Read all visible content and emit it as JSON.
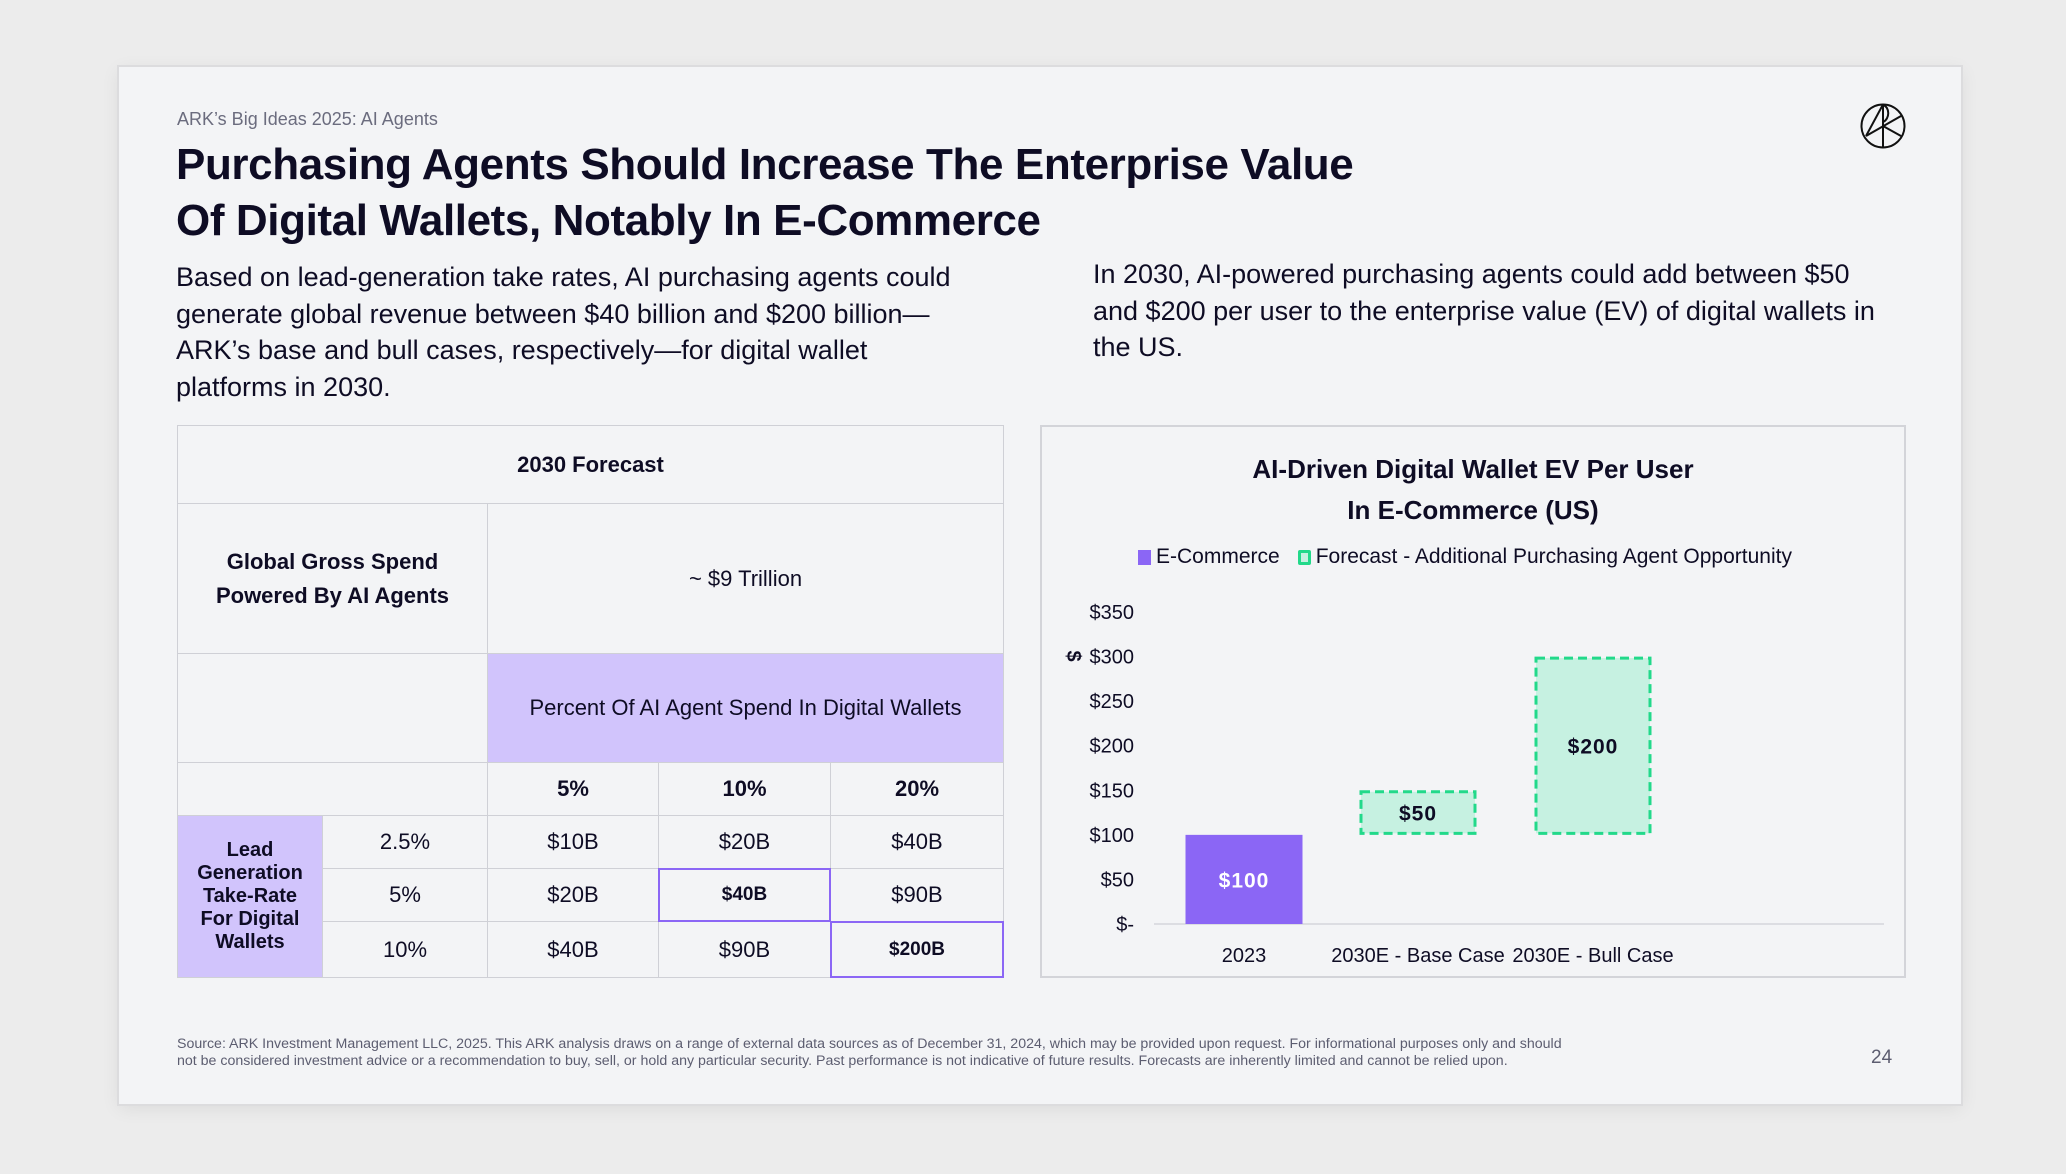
{
  "header": {
    "kicker": "ARK’s Big Ideas 2025: AI Agents",
    "title_line1": "Purchasing Agents Should Increase The Enterprise Value",
    "title_line2": "Of Digital Wallets, Notably In E-Commerce",
    "logo_icon": "ark-logo-icon"
  },
  "intro": {
    "left": "Based on lead-generation take rates, AI purchasing agents could generate global revenue between $40 billion and $200 billion—ARK’s base and bull cases, respectively—for digital wallet platforms in 2030.",
    "right": "In 2030, AI-powered purchasing agents could add between $50 and $200 per user to the enterprise value (EV) of digital wallets in the US."
  },
  "table": {
    "title": "2030 Forecast",
    "gross_spend_label": "Global Gross Spend Powered By AI Agents",
    "gross_spend_value": "~ $9 Trillion",
    "percent_header": "Percent Of AI Agent Spend In Digital Wallets",
    "column_headers": [
      "5%",
      "10%",
      "20%"
    ],
    "row_group_label": "Lead Generation Take-Rate For Digital Wallets",
    "rows": [
      {
        "rate": "2.5%",
        "values": [
          "$10B",
          "$20B",
          "$40B"
        ]
      },
      {
        "rate": "5%",
        "values": [
          "$20B",
          "$40B",
          "$90B"
        ]
      },
      {
        "rate": "10%",
        "values": [
          "$40B",
          "$90B",
          "$200B"
        ]
      }
    ],
    "highlighted_cells": [
      {
        "row": 1,
        "col": 1,
        "label": "base case"
      },
      {
        "row": 2,
        "col": 2,
        "label": "bull case"
      }
    ],
    "highlight_color": "#8b66f5",
    "header_fill_color": "#d1c4fc"
  },
  "chart_data": {
    "type": "bar",
    "subtype": "waterfall",
    "title_line1": "AI-Driven Digital Wallet EV Per User",
    "title_line2": "In E-Commerce (US)",
    "ylabel": "$",
    "xlabel": "",
    "ylim": [
      0,
      350
    ],
    "yticks": [
      0,
      50,
      100,
      150,
      200,
      250,
      300,
      350
    ],
    "ytick_labels": [
      "$-",
      "$50",
      "$100",
      "$150",
      "$200",
      "$250",
      "$300",
      "$350"
    ],
    "categories": [
      "2023",
      "2030E - Base Case",
      "2030E - Bull Case"
    ],
    "grid": false,
    "legend_position": "top",
    "series": [
      {
        "name": "E-Commerce",
        "color": "#8b66f5",
        "style": "solid",
        "bars": [
          {
            "category": "2023",
            "start": 0,
            "end": 100,
            "label": "$100"
          }
        ]
      },
      {
        "name": "Forecast - Additional Purchasing Agent Opportunity",
        "color": "#22d98a",
        "fill": "#c6f1e1",
        "style": "dashed",
        "bars": [
          {
            "category": "2030E - Base Case",
            "start": 100,
            "end": 150,
            "label": "$50"
          },
          {
            "category": "2030E - Bull Case",
            "start": 100,
            "end": 300,
            "label": "$200"
          }
        ]
      }
    ]
  },
  "footer": {
    "source_line1": "Source: ARK Investment Management LLC, 2025. This ARK analysis draws on a range of external data sources as of December 31, 2024, which may be provided upon request. For informational purposes only and should",
    "source_line2": "not be considered investment advice or a recommendation to buy, sell, or hold any particular security. Past performance is not indicative of future results. Forecasts are inherently limited and cannot be relied upon.",
    "page_number": "24"
  }
}
